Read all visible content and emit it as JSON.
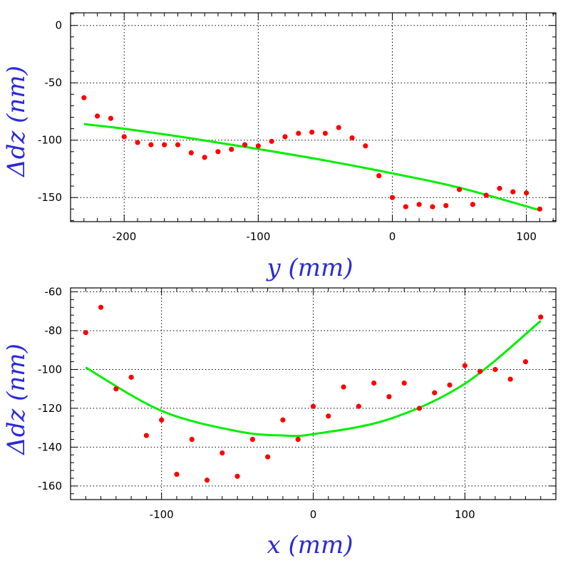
{
  "chart_data": [
    {
      "type": "scatter",
      "xlabel": "y (mm)",
      "ylabel": "Δdz (nm)",
      "xlim": [
        -240,
        122
      ],
      "ylim": [
        -171,
        11
      ],
      "xticks": [
        -200,
        -100,
        0,
        100
      ],
      "yticks": [
        0,
        -50,
        -100,
        -150
      ],
      "x_tick_labels": [
        "-200",
        "-100",
        "0",
        "100"
      ],
      "y_tick_labels": [
        "0",
        "-50",
        "-100",
        "-150"
      ],
      "grid": true,
      "series": [
        {
          "kind": "points",
          "x": [
            -230,
            -220,
            -210,
            -200,
            -190,
            -180,
            -170,
            -160,
            -150,
            -140,
            -130,
            -120,
            -110,
            -100,
            -90,
            -80,
            -70,
            -60,
            -50,
            -40,
            -30,
            -20,
            -10,
            0,
            10,
            20,
            30,
            40,
            50,
            60,
            70,
            80,
            90,
            100,
            110
          ],
          "y": [
            -63,
            -79,
            -81,
            -97,
            -102,
            -104,
            -104,
            -104,
            -111,
            -115,
            -110,
            -108,
            -104,
            -105,
            -101,
            -97,
            -94,
            -93,
            -94,
            -89,
            -98,
            -105,
            -131,
            -150,
            -158,
            -156,
            -158,
            -157,
            -143,
            -156,
            -148,
            -142,
            -145,
            -146,
            -160
          ]
        },
        {
          "kind": "fit",
          "x": [
            -230,
            -200,
            -150,
            -100,
            -50,
            0,
            50,
            110
          ],
          "y": [
            -86,
            -90,
            -98.4,
            -107.7,
            -117.7,
            -128.9,
            -141.4,
            -161
          ]
        }
      ]
    },
    {
      "type": "scatter",
      "xlabel": "x (mm)",
      "ylabel": "Δdz (nm)",
      "xlim": [
        -160,
        160
      ],
      "ylim": [
        -167,
        -58
      ],
      "xticks": [
        -100,
        0,
        100
      ],
      "yticks": [
        -60,
        -80,
        -100,
        -120,
        -140,
        -160
      ],
      "x_tick_labels": [
        "-100",
        "0",
        "100"
      ],
      "y_tick_labels": [
        "-60",
        "-80",
        "-100",
        "-120",
        "-140",
        "-160"
      ],
      "grid": true,
      "series": [
        {
          "kind": "points",
          "x": [
            -150,
            -140,
            -130,
            -120,
            -110,
            -100,
            -90,
            -80,
            -70,
            -60,
            -50,
            -40,
            -30,
            -20,
            -10,
            0,
            10,
            20,
            30,
            40,
            50,
            60,
            70,
            80,
            90,
            100,
            110,
            120,
            130,
            140,
            150
          ],
          "y": [
            -81,
            -68,
            -110,
            -104,
            -134,
            -126,
            -154,
            -136,
            -157,
            -143,
            -155,
            -136,
            -145,
            -126,
            -136,
            -119,
            -124,
            -109,
            -119,
            -107,
            -114,
            -107,
            -120,
            -112,
            -108,
            -98,
            -101,
            -100,
            -105,
            -96,
            -73
          ]
        },
        {
          "kind": "fit",
          "x": [
            -150,
            -100,
            -50,
            -20,
            0,
            50,
            100,
            150
          ],
          "y": [
            -99,
            -121.3,
            -131.8,
            -134,
            -133.3,
            -125.6,
            -107.3,
            -75
          ]
        }
      ]
    }
  ],
  "colors": {
    "points": "#ff0000",
    "fit": "#00ee00",
    "axis_label": "#2a2ad8",
    "frame": "#000000"
  }
}
